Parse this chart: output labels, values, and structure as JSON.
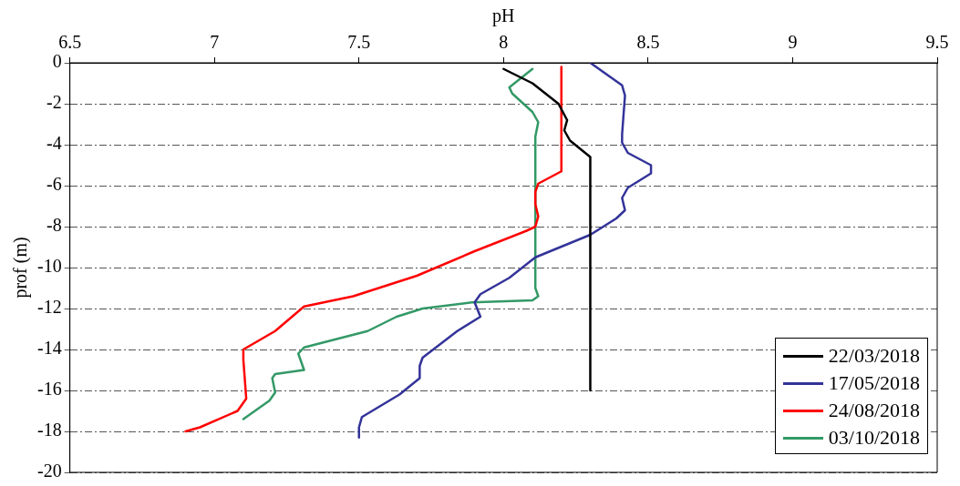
{
  "chart_data": {
    "type": "line",
    "xlabel": "pH",
    "ylabel": "prof (m)",
    "xlim": [
      6.5,
      9.5
    ],
    "xticks": [
      6.5,
      7,
      7.5,
      8,
      8.5,
      9,
      9.5
    ],
    "ylim": [
      -20,
      0
    ],
    "yticks": [
      -20,
      -18,
      -16,
      -14,
      -12,
      -10,
      -8,
      -6,
      -4,
      -2,
      0
    ],
    "grid": "y",
    "legend": "bottom right",
    "marker": "none",
    "line_style": "solid",
    "series": [
      {
        "name": "22/03/2018",
        "color": "#000000",
        "x": [
          8.0,
          8.1,
          8.19,
          8.22,
          8.21,
          8.23,
          8.3,
          8.3
        ],
        "values": [
          -0.3,
          -1.0,
          -2.0,
          -2.8,
          -3.3,
          -3.8,
          -4.6,
          -16
        ]
      },
      {
        "name": "17/05/2018",
        "color": "#333399",
        "x": [
          8.3,
          8.41,
          8.42,
          8.41,
          8.41,
          8.43,
          8.51,
          8.51,
          8.43,
          8.41,
          8.42,
          8.39,
          8.3,
          8.11,
          8.02,
          7.92,
          7.9,
          7.92,
          7.84,
          7.72,
          7.71,
          7.71,
          7.64,
          7.51,
          7.5,
          7.5
        ],
        "values": [
          0,
          -1.1,
          -1.6,
          -3.5,
          -3.9,
          -4.4,
          -5.0,
          -5.4,
          -6.1,
          -6.6,
          -7.2,
          -7.6,
          -8.4,
          -9.5,
          -10.5,
          -11.3,
          -11.7,
          -12.4,
          -13.1,
          -14.4,
          -14.8,
          -15.4,
          -16.2,
          -17.3,
          -17.8,
          -18.3
        ]
      },
      {
        "name": "24/08/2018",
        "color": "#ff0000",
        "x": [
          8.2,
          8.2,
          8.12,
          8.11,
          8.11,
          8.12,
          8.11,
          8.08,
          7.9,
          7.7,
          7.48,
          7.31,
          7.21,
          7.1,
          7.1,
          7.11,
          7.08,
          6.95,
          6.9
        ],
        "values": [
          -0.2,
          -5.3,
          -5.9,
          -6.3,
          -6.9,
          -7.5,
          -8.0,
          -8.2,
          -9.2,
          -10.4,
          -11.4,
          -11.9,
          -13.1,
          -14.0,
          -14.5,
          -16.4,
          -17.0,
          -17.8,
          -18.0
        ]
      },
      {
        "name": "03/10/2018",
        "color": "#339966",
        "x": [
          8.1,
          8.02,
          8.03,
          8.1,
          8.12,
          8.11,
          8.11,
          8.12,
          8.1,
          7.89,
          7.72,
          7.63,
          7.53,
          7.31,
          7.29,
          7.31,
          7.21,
          7.2,
          7.21,
          7.19,
          7.1
        ],
        "values": [
          -0.3,
          -1.2,
          -1.5,
          -2.4,
          -2.9,
          -3.6,
          -11.0,
          -11.4,
          -11.6,
          -11.7,
          -12.0,
          -12.4,
          -13.1,
          -13.9,
          -14.2,
          -15.0,
          -15.2,
          -15.4,
          -16.1,
          -16.5,
          -17.4
        ]
      }
    ]
  }
}
